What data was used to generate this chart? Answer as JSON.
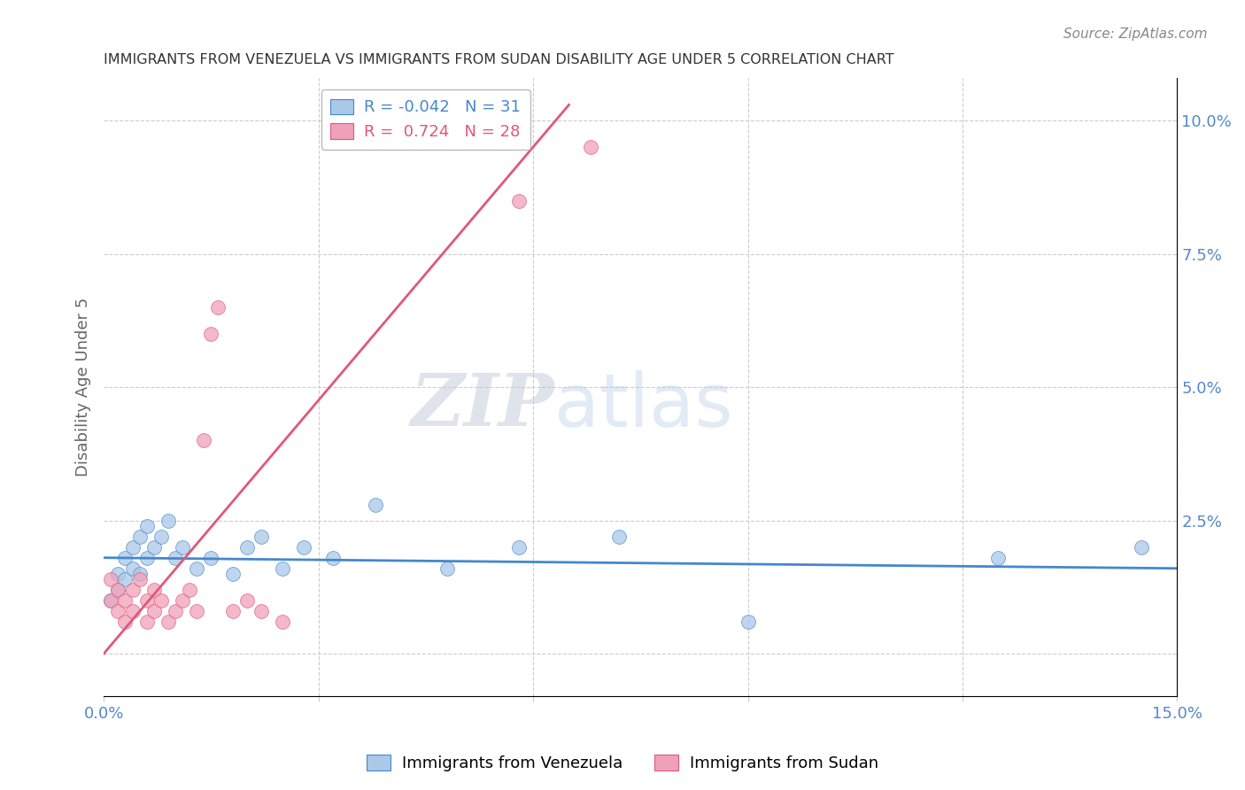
{
  "title": "IMMIGRANTS FROM VENEZUELA VS IMMIGRANTS FROM SUDAN DISABILITY AGE UNDER 5 CORRELATION CHART",
  "source": "Source: ZipAtlas.com",
  "ylabel": "Disability Age Under 5",
  "xmin": 0.0,
  "xmax": 0.15,
  "ymin": -0.008,
  "ymax": 0.108,
  "right_yticks": [
    0.0,
    0.025,
    0.05,
    0.075,
    0.1
  ],
  "right_yticklabels": [
    "",
    "2.5%",
    "5.0%",
    "7.5%",
    "10.0%"
  ],
  "xticks": [
    0.0,
    0.03,
    0.06,
    0.09,
    0.12,
    0.15
  ],
  "xticklabels": [
    "0.0%",
    "",
    "",
    "",
    "",
    "15.0%"
  ],
  "watermark_zip": "ZIP",
  "watermark_atlas": "atlas",
  "venezuela_color": "#aac8e8",
  "sudan_color": "#f0a0b8",
  "venezuela_line_color": "#4488cc",
  "sudan_line_color": "#e05878",
  "legend_venezuela_R": "-0.042",
  "legend_venezuela_N": "31",
  "legend_sudan_R": "0.724",
  "legend_sudan_N": "28",
  "venezuela_x": [
    0.001,
    0.002,
    0.002,
    0.003,
    0.003,
    0.004,
    0.004,
    0.005,
    0.005,
    0.006,
    0.006,
    0.007,
    0.008,
    0.009,
    0.01,
    0.011,
    0.013,
    0.015,
    0.018,
    0.02,
    0.022,
    0.025,
    0.028,
    0.032,
    0.038,
    0.048,
    0.058,
    0.072,
    0.09,
    0.125,
    0.145
  ],
  "venezuela_y": [
    0.01,
    0.012,
    0.015,
    0.018,
    0.014,
    0.016,
    0.02,
    0.015,
    0.022,
    0.018,
    0.024,
    0.02,
    0.022,
    0.025,
    0.018,
    0.02,
    0.016,
    0.018,
    0.015,
    0.02,
    0.022,
    0.016,
    0.02,
    0.018,
    0.028,
    0.016,
    0.02,
    0.022,
    0.006,
    0.018,
    0.02
  ],
  "sudan_x": [
    0.001,
    0.001,
    0.002,
    0.002,
    0.003,
    0.003,
    0.004,
    0.004,
    0.005,
    0.006,
    0.006,
    0.007,
    0.007,
    0.008,
    0.009,
    0.01,
    0.011,
    0.012,
    0.013,
    0.014,
    0.015,
    0.016,
    0.018,
    0.02,
    0.022,
    0.025,
    0.058,
    0.068
  ],
  "sudan_y": [
    0.01,
    0.014,
    0.008,
    0.012,
    0.006,
    0.01,
    0.008,
    0.012,
    0.014,
    0.006,
    0.01,
    0.012,
    0.008,
    0.01,
    0.006,
    0.008,
    0.01,
    0.012,
    0.008,
    0.04,
    0.06,
    0.065,
    0.008,
    0.01,
    0.008,
    0.006,
    0.085,
    0.095
  ],
  "sudan_trendline_x": [
    0.0,
    0.065
  ],
  "sudan_trendline_y": [
    0.0,
    0.103
  ],
  "venezuela_trendline_x": [
    0.0,
    0.15
  ],
  "venezuela_trendline_y": [
    0.018,
    0.016
  ]
}
